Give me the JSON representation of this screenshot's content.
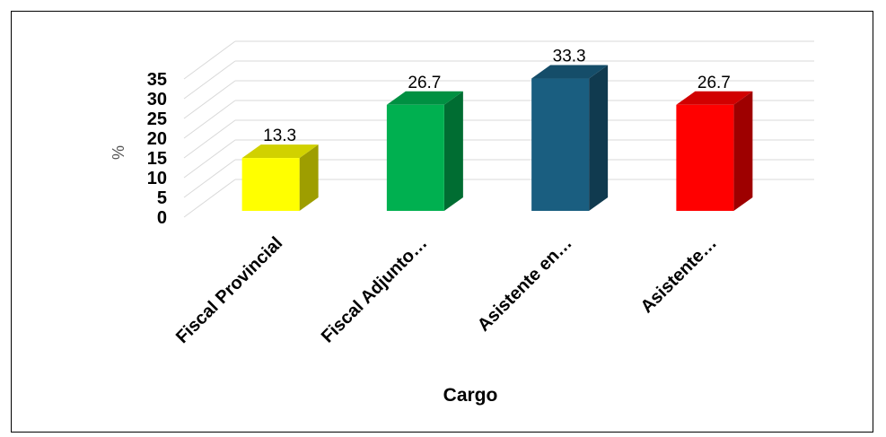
{
  "chart_data": {
    "type": "bar",
    "categories": [
      "Fiscal Provincial",
      "Fiscal Adjunto…",
      "Asistente en…",
      "Asistente…"
    ],
    "values": [
      13.3,
      26.7,
      33.3,
      26.7
    ],
    "data_labels": [
      "13.3",
      "26.7",
      "33.3",
      "26.7"
    ],
    "colors": [
      "#ffff00",
      "#00b050",
      "#1a5e80",
      "#ff0000"
    ],
    "xlabel": "Cargo",
    "ylabel": "%",
    "yticks": [
      "0",
      "5",
      "10",
      "15",
      "20",
      "25",
      "30",
      "35"
    ],
    "ylim": [
      0,
      35
    ],
    "grid": true,
    "style": "3d-column"
  }
}
